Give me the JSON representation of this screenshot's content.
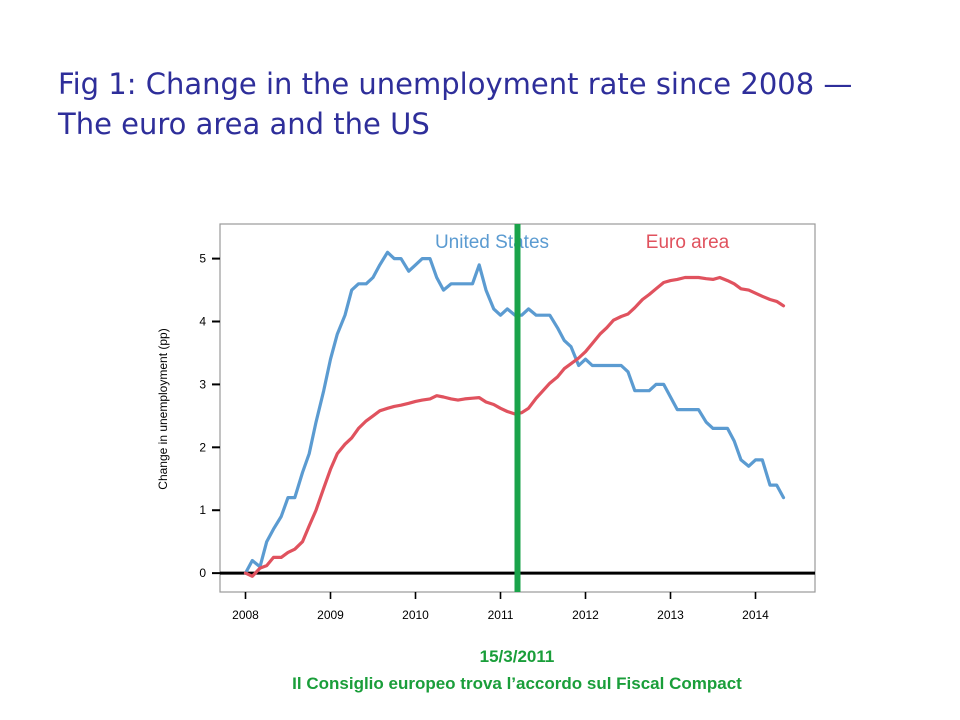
{
  "slide": {
    "title_line1": "Fig 1: Change in the unemployment rate since 2008 —",
    "title_line2": "The euro area and the US",
    "event_date": "15/3/2011",
    "event_note": "Il Consiglio europeo trova l’accordo sul Fiscal Compact"
  },
  "colors": {
    "title": "#2e2e9a",
    "us": "#5b9bd1",
    "euro": "#e0525e",
    "event_line": "#1aa34a",
    "caption": "#1a9e3a",
    "zero_line": "#000000"
  },
  "chart_data": {
    "type": "line",
    "title": "",
    "xlabel": "",
    "ylabel": "Change in unemployment (pp)",
    "xlim": [
      2007.7,
      2014.7
    ],
    "ylim": [
      -0.3,
      5.55
    ],
    "xticks": [
      2008,
      2009,
      2010,
      2011,
      2012,
      2013,
      2014
    ],
    "yticks": [
      0,
      1,
      2,
      3,
      4,
      5
    ],
    "grid": false,
    "legend": "in-plot labels at top",
    "hline": 0,
    "vline": {
      "x": 2011.2,
      "label": "15/3/2011"
    },
    "series": [
      {
        "name": "United States",
        "color": "#5b9bd1",
        "points": [
          [
            2008.0,
            0.0
          ],
          [
            2008.08,
            0.2
          ],
          [
            2008.17,
            0.1
          ],
          [
            2008.25,
            0.5
          ],
          [
            2008.33,
            0.7
          ],
          [
            2008.42,
            0.9
          ],
          [
            2008.5,
            1.2
          ],
          [
            2008.58,
            1.2
          ],
          [
            2008.67,
            1.6
          ],
          [
            2008.75,
            1.9
          ],
          [
            2008.83,
            2.4
          ],
          [
            2008.92,
            2.9
          ],
          [
            2009.0,
            3.4
          ],
          [
            2009.08,
            3.8
          ],
          [
            2009.17,
            4.1
          ],
          [
            2009.25,
            4.5
          ],
          [
            2009.33,
            4.6
          ],
          [
            2009.42,
            4.6
          ],
          [
            2009.5,
            4.7
          ],
          [
            2009.58,
            4.9
          ],
          [
            2009.67,
            5.1
          ],
          [
            2009.75,
            5.0
          ],
          [
            2009.83,
            5.0
          ],
          [
            2009.92,
            4.8
          ],
          [
            2010.0,
            4.9
          ],
          [
            2010.08,
            5.0
          ],
          [
            2010.17,
            5.0
          ],
          [
            2010.25,
            4.7
          ],
          [
            2010.33,
            4.5
          ],
          [
            2010.42,
            4.6
          ],
          [
            2010.5,
            4.6
          ],
          [
            2010.58,
            4.6
          ],
          [
            2010.67,
            4.6
          ],
          [
            2010.75,
            4.9
          ],
          [
            2010.83,
            4.5
          ],
          [
            2010.92,
            4.2
          ],
          [
            2011.0,
            4.1
          ],
          [
            2011.08,
            4.2
          ],
          [
            2011.17,
            4.1
          ],
          [
            2011.25,
            4.1
          ],
          [
            2011.33,
            4.2
          ],
          [
            2011.42,
            4.1
          ],
          [
            2011.5,
            4.1
          ],
          [
            2011.58,
            4.1
          ],
          [
            2011.67,
            3.9
          ],
          [
            2011.75,
            3.7
          ],
          [
            2011.83,
            3.6
          ],
          [
            2011.92,
            3.3
          ],
          [
            2012.0,
            3.4
          ],
          [
            2012.08,
            3.3
          ],
          [
            2012.17,
            3.3
          ],
          [
            2012.25,
            3.3
          ],
          [
            2012.33,
            3.3
          ],
          [
            2012.42,
            3.3
          ],
          [
            2012.5,
            3.2
          ],
          [
            2012.58,
            2.9
          ],
          [
            2012.67,
            2.9
          ],
          [
            2012.75,
            2.9
          ],
          [
            2012.83,
            3.0
          ],
          [
            2012.92,
            3.0
          ],
          [
            2013.0,
            2.8
          ],
          [
            2013.08,
            2.6
          ],
          [
            2013.17,
            2.6
          ],
          [
            2013.25,
            2.6
          ],
          [
            2013.33,
            2.6
          ],
          [
            2013.42,
            2.4
          ],
          [
            2013.5,
            2.3
          ],
          [
            2013.58,
            2.3
          ],
          [
            2013.67,
            2.3
          ],
          [
            2013.75,
            2.1
          ],
          [
            2013.83,
            1.8
          ],
          [
            2013.92,
            1.7
          ],
          [
            2014.0,
            1.8
          ],
          [
            2014.08,
            1.8
          ],
          [
            2014.17,
            1.4
          ],
          [
            2014.25,
            1.4
          ],
          [
            2014.33,
            1.2
          ]
        ]
      },
      {
        "name": "Euro area",
        "color": "#e0525e",
        "points": [
          [
            2008.0,
            0.0
          ],
          [
            2008.08,
            -0.05
          ],
          [
            2008.17,
            0.08
          ],
          [
            2008.25,
            0.12
          ],
          [
            2008.33,
            0.25
          ],
          [
            2008.42,
            0.25
          ],
          [
            2008.5,
            0.33
          ],
          [
            2008.58,
            0.38
          ],
          [
            2008.67,
            0.5
          ],
          [
            2008.75,
            0.75
          ],
          [
            2008.83,
            1.0
          ],
          [
            2008.92,
            1.35
          ],
          [
            2009.0,
            1.65
          ],
          [
            2009.08,
            1.9
          ],
          [
            2009.17,
            2.05
          ],
          [
            2009.25,
            2.15
          ],
          [
            2009.33,
            2.3
          ],
          [
            2009.42,
            2.42
          ],
          [
            2009.5,
            2.5
          ],
          [
            2009.58,
            2.58
          ],
          [
            2009.67,
            2.62
          ],
          [
            2009.75,
            2.65
          ],
          [
            2009.83,
            2.67
          ],
          [
            2009.92,
            2.7
          ],
          [
            2010.0,
            2.73
          ],
          [
            2010.08,
            2.75
          ],
          [
            2010.17,
            2.77
          ],
          [
            2010.25,
            2.82
          ],
          [
            2010.33,
            2.8
          ],
          [
            2010.42,
            2.77
          ],
          [
            2010.5,
            2.75
          ],
          [
            2010.58,
            2.77
          ],
          [
            2010.67,
            2.78
          ],
          [
            2010.75,
            2.79
          ],
          [
            2010.83,
            2.72
          ],
          [
            2010.92,
            2.68
          ],
          [
            2011.0,
            2.62
          ],
          [
            2011.08,
            2.57
          ],
          [
            2011.17,
            2.53
          ],
          [
            2011.25,
            2.55
          ],
          [
            2011.33,
            2.62
          ],
          [
            2011.42,
            2.78
          ],
          [
            2011.5,
            2.9
          ],
          [
            2011.58,
            3.02
          ],
          [
            2011.67,
            3.12
          ],
          [
            2011.75,
            3.25
          ],
          [
            2011.83,
            3.33
          ],
          [
            2011.92,
            3.42
          ],
          [
            2012.0,
            3.52
          ],
          [
            2012.08,
            3.65
          ],
          [
            2012.17,
            3.8
          ],
          [
            2012.25,
            3.9
          ],
          [
            2012.33,
            4.02
          ],
          [
            2012.42,
            4.08
          ],
          [
            2012.5,
            4.12
          ],
          [
            2012.58,
            4.22
          ],
          [
            2012.67,
            4.35
          ],
          [
            2012.75,
            4.43
          ],
          [
            2012.83,
            4.52
          ],
          [
            2012.92,
            4.62
          ],
          [
            2013.0,
            4.65
          ],
          [
            2013.08,
            4.67
          ],
          [
            2013.17,
            4.7
          ],
          [
            2013.25,
            4.7
          ],
          [
            2013.33,
            4.7
          ],
          [
            2013.42,
            4.68
          ],
          [
            2013.5,
            4.67
          ],
          [
            2013.58,
            4.7
          ],
          [
            2013.67,
            4.65
          ],
          [
            2013.75,
            4.6
          ],
          [
            2013.83,
            4.52
          ],
          [
            2013.92,
            4.5
          ],
          [
            2014.0,
            4.45
          ],
          [
            2014.08,
            4.4
          ],
          [
            2014.17,
            4.35
          ],
          [
            2014.25,
            4.32
          ],
          [
            2014.33,
            4.25
          ]
        ]
      }
    ]
  }
}
